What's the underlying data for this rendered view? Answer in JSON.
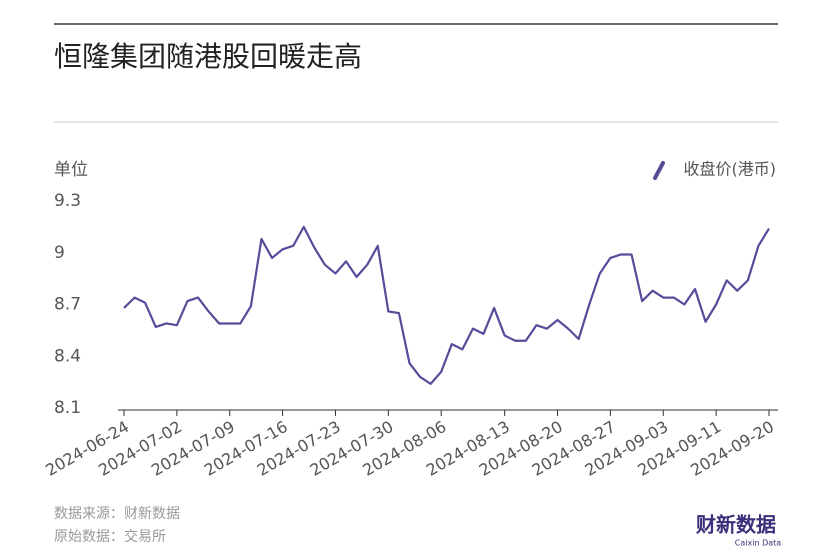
{
  "chart_data": {
    "type": "line",
    "title": "恒隆集团随港股回暖走高",
    "y_label": "单位",
    "categories": [
      "2024-06-24",
      null,
      null,
      null,
      null,
      "2024-07-02",
      null,
      null,
      null,
      null,
      "2024-07-09",
      null,
      null,
      null,
      null,
      "2024-07-16",
      null,
      null,
      null,
      null,
      "2024-07-23",
      null,
      null,
      null,
      null,
      "2024-07-30",
      null,
      null,
      null,
      null,
      "2024-08-06",
      null,
      null,
      null,
      null,
      null,
      "2024-08-13",
      null,
      null,
      null,
      null,
      "2024-08-20",
      null,
      null,
      null,
      null,
      "2024-08-27",
      null,
      null,
      null,
      null,
      "2024-09-03",
      null,
      null,
      null,
      null,
      "2024-09-11",
      null,
      null,
      null,
      null,
      "2024-09-20"
    ],
    "series": [
      {
        "name": "收盘价(港币)",
        "color": "#5b4a9a",
        "values": [
          8.68,
          8.74,
          8.71,
          8.57,
          8.59,
          8.58,
          8.72,
          8.74,
          8.66,
          8.59,
          8.59,
          8.59,
          8.69,
          9.08,
          8.97,
          9.02,
          9.04,
          9.15,
          9.03,
          8.93,
          8.88,
          8.95,
          8.86,
          8.93,
          9.04,
          8.66,
          8.65,
          8.36,
          8.28,
          8.24,
          8.31,
          8.47,
          8.44,
          8.56,
          8.53,
          8.68,
          8.52,
          8.49,
          8.49,
          8.58,
          8.56,
          8.61,
          8.56,
          8.5,
          8.7,
          8.88,
          8.97,
          8.99,
          8.99,
          8.72,
          8.78,
          8.74,
          8.74,
          8.7,
          8.79,
          8.6,
          8.7,
          8.84,
          8.78,
          8.84,
          9.04,
          9.14
        ]
      }
    ],
    "ylim": [
      8.1,
      9.3
    ],
    "yticks": [
      {
        "value": 8.1,
        "label": "8.1"
      },
      {
        "value": 8.4,
        "label": "8.4"
      },
      {
        "value": 8.7,
        "label": "8.7"
      },
      {
        "value": 9,
        "label": "9"
      },
      {
        "value": 9.3,
        "label": "9.3"
      }
    ],
    "legend": "top-right",
    "source": "数据来源：财新数据",
    "origin": "原始数据：交易所",
    "logo": "财新数据",
    "logo_sub": "Caixin Data"
  }
}
